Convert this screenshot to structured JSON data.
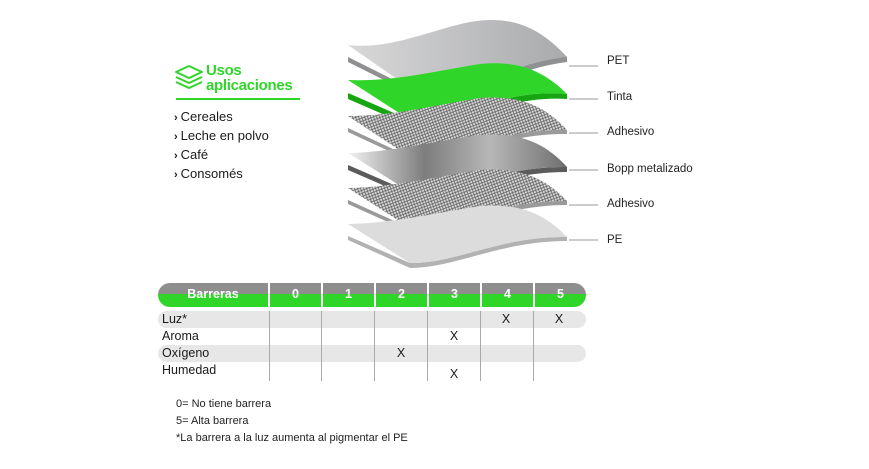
{
  "uses": {
    "title_line1": "Usos",
    "title_line2": "aplicaciones",
    "icon": "layers-icon",
    "items": [
      "Cereales",
      "Leche en polvo",
      "Café",
      "Consomés"
    ]
  },
  "layers": [
    {
      "label": "PET",
      "color": "#bfc0c2"
    },
    {
      "label": "Tinta",
      "color": "#2fd629"
    },
    {
      "label": "Adhesivo",
      "color": "#cfcfcf"
    },
    {
      "label": "Bopp metalizado",
      "color": "#8c8c8c"
    },
    {
      "label": "Adhesivo",
      "color": "#cfcfcf"
    },
    {
      "label": "PE",
      "color": "#dddddd"
    }
  ],
  "barriers": {
    "header": "Barreras",
    "levels": [
      "0",
      "1",
      "2",
      "3",
      "4",
      "5"
    ],
    "rows": [
      {
        "name": "Luz*",
        "marks": [
          4,
          5
        ]
      },
      {
        "name": "Aroma",
        "marks": [
          3
        ]
      },
      {
        "name": "Oxígeno",
        "marks": [
          2
        ]
      },
      {
        "name": "Humedad",
        "marks": [
          3
        ]
      }
    ],
    "mark_symbol": "X"
  },
  "notes": [
    "0= No tiene barrera",
    "5= Alta barrera",
    "*La barrera a la luz aumenta al pigmentar el PE"
  ],
  "colors": {
    "accent": "#2fd629",
    "header_gray": "#8e8e8e",
    "band": "#e7e7e8"
  }
}
